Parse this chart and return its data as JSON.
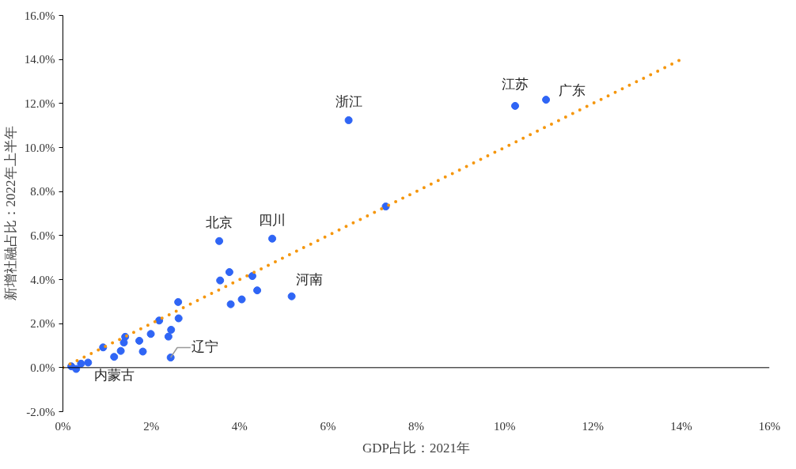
{
  "chart_data": {
    "type": "scatter",
    "xlabel": "GDP占比：2021年",
    "ylabel": "新增社融占比：2022年上半年",
    "xlim": [
      0,
      16
    ],
    "ylim": [
      -2,
      16
    ],
    "xticks": [
      {
        "value": 0,
        "label": "0%"
      },
      {
        "value": 2,
        "label": "2%"
      },
      {
        "value": 4,
        "label": "4%"
      },
      {
        "value": 6,
        "label": "6%"
      },
      {
        "value": 8,
        "label": "8%"
      },
      {
        "value": 10,
        "label": "10%"
      },
      {
        "value": 12,
        "label": "12%"
      },
      {
        "value": 14,
        "label": "14%"
      },
      {
        "value": 16,
        "label": "16%"
      }
    ],
    "yticks": [
      {
        "value": -2,
        "label": "-2.0%"
      },
      {
        "value": 0,
        "label": "0.0%"
      },
      {
        "value": 2,
        "label": "2.0%"
      },
      {
        "value": 4,
        "label": "4.0%"
      },
      {
        "value": 6,
        "label": "6.0%"
      },
      {
        "value": 8,
        "label": "8.0%"
      },
      {
        "value": 10,
        "label": "10.0%"
      },
      {
        "value": 12,
        "label": "12.0%"
      },
      {
        "value": 14,
        "label": "14.0%"
      },
      {
        "value": 16,
        "label": "16.0%"
      }
    ],
    "marker": "circle",
    "series": [
      {
        "color": "#2f65f5",
        "x": [
          0.19,
          0.3,
          0.41,
          0.57,
          0.91,
          1.16,
          1.31,
          1.38,
          1.41,
          1.73,
          1.81,
          1.99,
          2.18,
          2.39,
          2.45,
          2.44,
          2.62,
          2.61,
          3.56,
          3.77,
          3.8,
          4.05,
          4.29,
          4.4,
          5.18,
          3.54,
          4.74,
          7.31,
          6.47,
          10.24,
          10.94
        ],
        "values": [
          0.06,
          -0.06,
          0.18,
          0.23,
          0.92,
          0.49,
          0.76,
          1.14,
          1.4,
          1.22,
          0.73,
          1.53,
          2.14,
          1.41,
          1.72,
          0.46,
          2.24,
          2.98,
          3.96,
          4.34,
          2.88,
          3.1,
          4.16,
          3.51,
          3.24,
          5.75,
          5.86,
          7.32,
          11.24,
          11.89,
          12.17
        ]
      },
      {
        "type": "line",
        "color": "#f5960c",
        "line_style": "dotted",
        "marker": "none",
        "x": [
          0,
          14
        ],
        "values": [
          0,
          14
        ]
      }
    ],
    "annotations": [
      {
        "text": "浙江",
        "x": 6.47,
        "y": 11.24
      },
      {
        "text": "江苏",
        "x": 10.24,
        "y": 11.89
      },
      {
        "text": "广东",
        "x": 10.94,
        "y": 12.17
      },
      {
        "text": "北京",
        "x": 3.54,
        "y": 5.75
      },
      {
        "text": "四川",
        "x": 4.74,
        "y": 5.86
      },
      {
        "text": "河南",
        "x": 5.18,
        "y": 3.24
      },
      {
        "text": "辽宁",
        "x": 2.44,
        "y": 0.46
      },
      {
        "text": "内蒙古",
        "x": 0.57,
        "y": 0.23
      }
    ]
  }
}
